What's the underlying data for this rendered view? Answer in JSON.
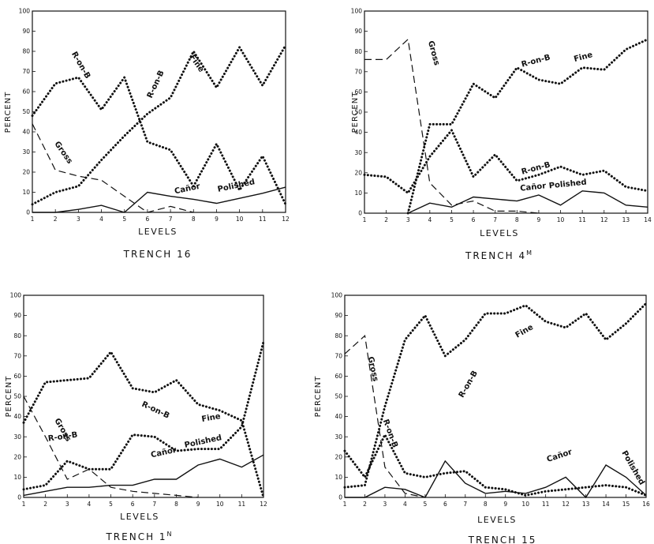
{
  "chart_data": [
    {
      "type": "line",
      "title": "TRENCH 16",
      "xlabel": "LEVELS",
      "ylabel": "PERCENT",
      "x": [
        1,
        2,
        3,
        4,
        5,
        6,
        7,
        8,
        9,
        10,
        11,
        12
      ],
      "xlim": [
        1,
        12
      ],
      "ylim": [
        0,
        100
      ],
      "yticks": [
        0,
        10,
        20,
        30,
        40,
        50,
        60,
        70,
        80,
        90,
        100
      ],
      "series": [
        {
          "name": "R-on-B",
          "style": "dotted",
          "x": [
            1,
            2,
            3,
            4,
            5,
            6,
            7,
            8,
            9,
            10,
            11,
            12
          ],
          "values": [
            48,
            64,
            67,
            51,
            67,
            35,
            31,
            13,
            34,
            11,
            28,
            4
          ]
        },
        {
          "name": "Fine",
          "style": "dotted",
          "x": [
            1,
            2,
            3,
            4,
            5,
            6,
            7,
            8,
            9,
            10,
            11,
            12
          ],
          "values": [
            4,
            10,
            13,
            26,
            38,
            49,
            57,
            80,
            62,
            82,
            63,
            83
          ]
        },
        {
          "name": "Gross",
          "style": "dashed",
          "x": [
            1,
            2,
            3,
            4,
            5,
            6,
            7,
            8
          ],
          "values": [
            44,
            21,
            18,
            16,
            8,
            0,
            3,
            0
          ]
        },
        {
          "name": "Polished",
          "style": "solid",
          "x": [
            1,
            2,
            3,
            4,
            5,
            6,
            7,
            8,
            9,
            10,
            11,
            12
          ],
          "values": [
            0,
            0,
            1.5,
            3.5,
            0,
            10,
            8,
            6.5,
            4.5,
            7,
            9.5,
            12.5
          ]
        }
      ],
      "labels": [
        {
          "text": "R-on-B"
        },
        {
          "text": "R-on-B"
        },
        {
          "text": "Fine"
        },
        {
          "text": "Gross"
        },
        {
          "text": "Cañor"
        },
        {
          "text": "Polished"
        }
      ]
    },
    {
      "type": "line",
      "title": "TRENCH 4",
      "title_sup": "M",
      "xlabel": "LEVELS",
      "ylabel": "PERCENT",
      "x": [
        1,
        2,
        3,
        4,
        5,
        6,
        7,
        8,
        9,
        10,
        11,
        12,
        13,
        14
      ],
      "xlim": [
        1,
        14
      ],
      "ylim": [
        0,
        100
      ],
      "yticks": [
        0,
        10,
        20,
        30,
        40,
        50,
        60,
        70,
        80,
        90,
        100
      ],
      "series": [
        {
          "name": "Fine",
          "style": "dotted",
          "x": [
            3,
            4,
            5,
            6,
            7,
            8,
            9,
            10,
            11,
            12,
            13,
            14
          ],
          "values": [
            0,
            44,
            44,
            64,
            57,
            72,
            66,
            64,
            72,
            71,
            81,
            86
          ]
        },
        {
          "name": "R-on-B",
          "style": "dotted",
          "x": [
            1,
            2,
            3,
            4,
            5,
            6,
            7,
            8,
            9,
            10,
            11,
            12,
            13,
            14
          ],
          "values": [
            19,
            18,
            10,
            28,
            41,
            18,
            29,
            16,
            19,
            23,
            19,
            21,
            13,
            11
          ]
        },
        {
          "name": "Gross",
          "style": "dashed",
          "x": [
            1,
            2,
            3,
            4,
            5,
            6,
            7,
            8,
            9
          ],
          "values": [
            76,
            76,
            86,
            15,
            4,
            6,
            1,
            1,
            0
          ]
        },
        {
          "name": "Polished",
          "style": "solid",
          "x": [
            3,
            4,
            5,
            6,
            7,
            8,
            9,
            10,
            11,
            12,
            13,
            14
          ],
          "values": [
            0,
            5,
            3,
            8,
            7,
            6,
            9,
            4,
            11,
            10,
            4,
            3
          ]
        }
      ],
      "labels": [
        {
          "text": "Gross"
        },
        {
          "text": "R-on-B"
        },
        {
          "text": "Fine"
        },
        {
          "text": "R-on-B"
        },
        {
          "text": "Cañor"
        },
        {
          "text": "Polished"
        }
      ]
    },
    {
      "type": "line",
      "title": "TRENCH 1",
      "title_sup": "N",
      "xlabel": "LEVELS",
      "ylabel": "PERCENT",
      "x": [
        1,
        2,
        3,
        4,
        5,
        6,
        7,
        8,
        9,
        10,
        11,
        12
      ],
      "xlim": [
        1,
        12
      ],
      "ylim": [
        0,
        100
      ],
      "yticks": [
        0,
        10,
        20,
        30,
        40,
        50,
        60,
        70,
        80,
        90,
        100
      ],
      "series": [
        {
          "name": "R-on-B",
          "style": "dotted",
          "x": [
            1,
            2,
            3,
            4,
            5,
            6,
            7,
            8,
            9,
            10,
            11,
            12
          ],
          "values": [
            37,
            57,
            58,
            59,
            72,
            54,
            52,
            58,
            46,
            43,
            38,
            0
          ]
        },
        {
          "name": "Fine",
          "style": "dotted",
          "x": [
            1,
            2,
            3,
            4,
            5,
            6,
            7,
            8,
            9,
            10,
            11,
            12
          ],
          "values": [
            4,
            6,
            18,
            14,
            14,
            31,
            30,
            23,
            24,
            24,
            35,
            77
          ]
        },
        {
          "name": "Gross",
          "style": "dashed",
          "x": [
            1,
            2,
            3,
            4,
            5,
            6,
            7,
            8,
            9
          ],
          "values": [
            50,
            30,
            9,
            14,
            5,
            3,
            2,
            1,
            0
          ]
        },
        {
          "name": "Polished",
          "style": "solid",
          "x": [
            1,
            2,
            3,
            4,
            5,
            6,
            7,
            8,
            9,
            10,
            11,
            12
          ],
          "values": [
            1,
            3,
            5,
            5,
            6,
            6,
            9,
            9,
            16,
            19,
            15,
            21
          ]
        }
      ],
      "labels": [
        {
          "text": "R-on-B"
        },
        {
          "text": "Gross"
        },
        {
          "text": "R-on-B"
        },
        {
          "text": "Fine"
        },
        {
          "text": "Cañor"
        },
        {
          "text": "Polished"
        }
      ]
    },
    {
      "type": "line",
      "title": "TRENCH 15",
      "xlabel": "LEVELS",
      "ylabel": "PERCENT",
      "x": [
        1,
        2,
        3,
        4,
        5,
        6,
        7,
        8,
        9,
        10,
        11,
        12,
        13,
        14,
        15,
        16
      ],
      "xlim": [
        1,
        16
      ],
      "ylim": [
        0,
        100
      ],
      "yticks": [
        0,
        10,
        20,
        30,
        40,
        50,
        60,
        70,
        80,
        90,
        100
      ],
      "series": [
        {
          "name": "Fine",
          "style": "dotted",
          "x": [
            1,
            2,
            3,
            4,
            5,
            6,
            7,
            8,
            9,
            10,
            11,
            12,
            13,
            14,
            15,
            16
          ],
          "values": [
            5,
            6,
            45,
            78,
            90,
            70,
            78,
            91,
            91,
            95,
            87,
            84,
            91,
            78,
            86,
            96
          ]
        },
        {
          "name": "R-on-B",
          "style": "dotted",
          "x": [
            1,
            2,
            3,
            4,
            5,
            6,
            7,
            8,
            9,
            10,
            11,
            12,
            13,
            14,
            15,
            16
          ],
          "values": [
            23,
            10,
            31,
            12,
            10,
            12,
            13,
            5,
            4,
            1,
            3,
            4,
            5,
            6,
            5,
            1
          ]
        },
        {
          "name": "Gross",
          "style": "dashed",
          "x": [
            1,
            2,
            3,
            4,
            5
          ],
          "values": [
            71,
            80,
            15,
            2,
            0
          ]
        },
        {
          "name": "Polished",
          "style": "solid",
          "x": [
            1,
            2,
            3,
            4,
            5,
            6,
            7,
            8,
            9,
            10,
            11,
            12,
            13,
            14,
            15,
            16
          ],
          "values": [
            0,
            0,
            5,
            4,
            0,
            18,
            7,
            2,
            3,
            2,
            5,
            10,
            0,
            16,
            10,
            1
          ]
        }
      ],
      "labels": [
        {
          "text": "R-on-B"
        },
        {
          "text": "Fine"
        },
        {
          "text": "Gross"
        },
        {
          "text": "R-on-B"
        },
        {
          "text": "Cañor"
        },
        {
          "text": "Polished"
        }
      ]
    }
  ]
}
